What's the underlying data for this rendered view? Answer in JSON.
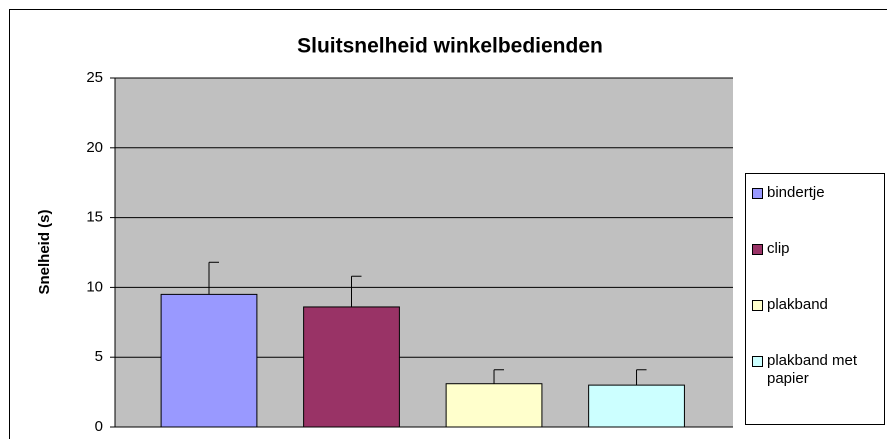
{
  "chart_data": {
    "type": "bar",
    "title": "Sluitsnelheid winkelbedienden",
    "ylabel": "Snelheid (s)",
    "ylim": [
      0,
      25
    ],
    "yticks": [
      0,
      5,
      10,
      15,
      20,
      25
    ],
    "grid": true,
    "series": [
      {
        "name": "bindertje",
        "color": "#9999ff",
        "values": [
          9.5
        ],
        "errors": [
          2.3
        ]
      },
      {
        "name": "clip",
        "color": "#993366",
        "values": [
          8.6
        ],
        "errors": [
          2.2
        ]
      },
      {
        "name": "plakband",
        "color": "#ffffcc",
        "values": [
          3.1
        ],
        "errors": [
          1.0
        ]
      },
      {
        "name": "plakband met papier",
        "color": "#ccffff",
        "values": [
          3.0
        ],
        "errors": [
          1.1
        ]
      }
    ]
  }
}
